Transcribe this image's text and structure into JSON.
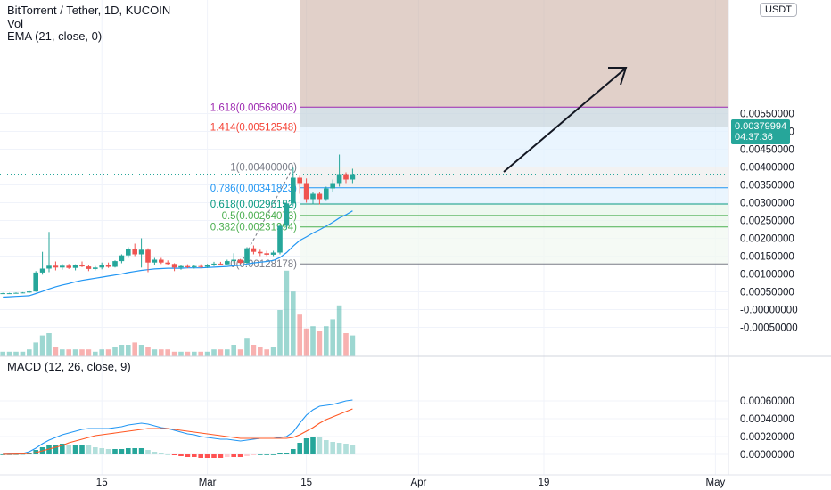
{
  "header": {
    "symbol": "BitTorrent / Tether, 1D, KUCOIN",
    "vol_label": "Vol",
    "ema_label": "EMA (21, close, 0)",
    "macd_label": "MACD (12, 26, close, 9)",
    "currency_button": "USDT"
  },
  "colors": {
    "up": "#26a69a",
    "down": "#ef5350",
    "ema": "#2196f3",
    "macd": "#2196f3",
    "signal": "#ff5722",
    "grid": "#f0f3fa"
  },
  "last_price": {
    "value": "0.00379994",
    "countdown": "04:37:36"
  },
  "price_axis_ticks": [
    "0.00550000",
    "0.00500000",
    "0.00450000",
    "0.00400000",
    "0.00350000",
    "0.00300000",
    "0.00250000",
    "0.00200000",
    "0.00150000",
    "0.00100000",
    "0.00050000",
    "-0.00000000",
    "-0.00050000"
  ],
  "macd_axis_ticks": [
    "0.00060000",
    "0.00040000",
    "0.00020000",
    "0.00000000"
  ],
  "time_axis_ticks": [
    "15",
    "Mar",
    "15",
    "Apr",
    "19",
    "May"
  ],
  "fib_levels": [
    {
      "label": "1.618(0.00568006)",
      "price": 0.00568006,
      "color": "#9c27b0"
    },
    {
      "label": "1.414(0.00512548)",
      "price": 0.00512548,
      "color": "#f44336"
    },
    {
      "label": "1(0.00400000)",
      "price": 0.004,
      "color": "#787b86"
    },
    {
      "label": "0.786(0.00341823)",
      "price": 0.00341823,
      "color": "#2196f3"
    },
    {
      "label": "0.618(0.00296152)",
      "price": 0.00296152,
      "color": "#089981"
    },
    {
      "label": "0.5(0.00264073)",
      "price": 0.00264073,
      "color": "#4caf50"
    },
    {
      "label": "0.382(0.00231994)",
      "price": 0.00231994,
      "color": "#4caf50"
    },
    {
      "label": "0(0.00128178)",
      "price": 0.00128178,
      "color": "#787b86"
    }
  ],
  "chart_data": [
    {
      "type": "candlestick",
      "title": "BitTorrent / Tether, 1D, KUCOIN",
      "ylim": [
        -0.0005,
        0.006
      ],
      "grid": true,
      "series": [
        {
          "name": "price",
          "ohlc": [
            [
              0.00045,
              0.00047,
              0.00044,
              0.00046
            ],
            [
              0.00046,
              0.00047,
              0.00045,
              0.00046
            ],
            [
              0.00046,
              0.00048,
              0.00045,
              0.00047
            ],
            [
              0.00047,
              0.00049,
              0.00046,
              0.00048
            ],
            [
              0.00048,
              0.00052,
              0.00047,
              0.00051
            ],
            [
              0.00051,
              0.00108,
              0.0005,
              0.00104
            ],
            [
              0.00104,
              0.00162,
              0.00098,
              0.00115
            ],
            [
              0.00115,
              0.00218,
              0.00105,
              0.00123
            ],
            [
              0.00123,
              0.00135,
              0.0011,
              0.00118
            ],
            [
              0.00118,
              0.00128,
              0.00112,
              0.00123
            ],
            [
              0.00123,
              0.00128,
              0.00114,
              0.00117
            ],
            [
              0.00117,
              0.00127,
              0.0011,
              0.00124
            ],
            [
              0.00124,
              0.00135,
              0.00119,
              0.00121
            ],
            [
              0.00121,
              0.00126,
              0.00108,
              0.00114
            ],
            [
              0.00114,
              0.00122,
              0.0011,
              0.00118
            ],
            [
              0.00118,
              0.00132,
              0.00113,
              0.00125
            ],
            [
              0.00125,
              0.00132,
              0.00117,
              0.0012
            ],
            [
              0.0012,
              0.00138,
              0.00118,
              0.00136
            ],
            [
              0.00136,
              0.00155,
              0.0013,
              0.00152
            ],
            [
              0.00152,
              0.00175,
              0.00145,
              0.0017
            ],
            [
              0.0017,
              0.00185,
              0.0015,
              0.00155
            ],
            [
              0.00155,
              0.002,
              0.00118,
              0.00168
            ],
            [
              0.00168,
              0.00172,
              0.00105,
              0.00132
            ],
            [
              0.00132,
              0.00145,
              0.00125,
              0.0014
            ],
            [
              0.0014,
              0.00145,
              0.00128,
              0.00132
            ],
            [
              0.00132,
              0.00138,
              0.00124,
              0.00128
            ],
            [
              0.00128,
              0.0013,
              0.00108,
              0.00118
            ],
            [
              0.00118,
              0.00126,
              0.00112,
              0.00122
            ],
            [
              0.00122,
              0.00127,
              0.00116,
              0.00119
            ],
            [
              0.00119,
              0.00126,
              0.00115,
              0.00122
            ],
            [
              0.00122,
              0.00127,
              0.00117,
              0.0012
            ],
            [
              0.0012,
              0.00128,
              0.00117,
              0.00125
            ],
            [
              0.00125,
              0.00134,
              0.00122,
              0.00129
            ],
            [
              0.00129,
              0.00134,
              0.00124,
              0.00127
            ],
            [
              0.00127,
              0.0014,
              0.00124,
              0.00136
            ],
            [
              0.00136,
              0.00158,
              0.0013,
              0.0014
            ],
            [
              0.0014,
              0.00142,
              0.00128,
              0.00131
            ],
            [
              0.00131,
              0.00175,
              0.00128,
              0.00172
            ],
            [
              0.00172,
              0.0018,
              0.00155,
              0.00162
            ],
            [
              0.00162,
              0.00168,
              0.0015,
              0.00158
            ],
            [
              0.00158,
              0.00165,
              0.0015,
              0.00154
            ],
            [
              0.00154,
              0.00165,
              0.0015,
              0.0016
            ],
            [
              0.0016,
              0.0024,
              0.00155,
              0.00235
            ],
            [
              0.00235,
              0.00305,
              0.00225,
              0.00298
            ],
            [
              0.00298,
              0.00398,
              0.0029,
              0.0037
            ],
            [
              0.0037,
              0.00378,
              0.00325,
              0.00355
            ],
            [
              0.00355,
              0.00368,
              0.003,
              0.0031
            ],
            [
              0.0031,
              0.0033,
              0.00295,
              0.00325
            ],
            [
              0.00325,
              0.0033,
              0.00295,
              0.0031
            ],
            [
              0.0031,
              0.00345,
              0.00305,
              0.0034
            ],
            [
              0.0034,
              0.00365,
              0.0033,
              0.00355
            ],
            [
              0.00355,
              0.00435,
              0.00345,
              0.0038
            ],
            [
              0.0038,
              0.00385,
              0.00355,
              0.00365
            ],
            [
              0.00365,
              0.00395,
              0.00355,
              0.0038
            ]
          ]
        },
        {
          "name": "EMA (21, close, 0)",
          "values": [
            0.00035,
            0.00036,
            0.00037,
            0.00038,
            0.00039,
            0.00045,
            0.00051,
            0.00058,
            0.00064,
            0.00069,
            0.00073,
            0.00078,
            0.00082,
            0.00085,
            0.00088,
            0.00091,
            0.00094,
            0.00097,
            0.001,
            0.00104,
            0.00107,
            0.0011,
            0.00112,
            0.00114,
            0.00115,
            0.00116,
            0.00116,
            0.00116,
            0.00117,
            0.00117,
            0.00117,
            0.00118,
            0.00119,
            0.0012,
            0.00121,
            0.00123,
            0.00124,
            0.00128,
            0.00131,
            0.00133,
            0.00135,
            0.00138,
            0.00146,
            0.0016,
            0.00178,
            0.00194,
            0.00204,
            0.00215,
            0.00224,
            0.00234,
            0.00245,
            0.00257,
            0.00266,
            0.00277
          ]
        }
      ]
    },
    {
      "type": "bar",
      "title": "Vol",
      "values": [
        2,
        2,
        2,
        2,
        3,
        6,
        9,
        10,
        4,
        3,
        3,
        3,
        3,
        3,
        2,
        3,
        3,
        4,
        5,
        5,
        6,
        5,
        4,
        3,
        3,
        3,
        2,
        2,
        2,
        2,
        2,
        2,
        3,
        3,
        3,
        5,
        3,
        8,
        5,
        4,
        3,
        4,
        20,
        37,
        28,
        18,
        12,
        13,
        11,
        13,
        16,
        22,
        10,
        9
      ]
    },
    {
      "type": "line",
      "title": "MACD (12, 26, close, 9)",
      "ylim": [
        -8e-05,
        0.00068
      ],
      "series": [
        {
          "name": "MACD",
          "values": [
            1e-06,
            3e-06,
            5e-06,
            1e-05,
            3e-05,
            7e-05,
            0.00012,
            0.00016,
            0.00019,
            0.00022,
            0.00024,
            0.00026,
            0.00028,
            0.00029,
            0.00029,
            0.00029,
            0.00029,
            0.0003,
            0.00031,
            0.00033,
            0.00034,
            0.00035,
            0.00034,
            0.00032,
            0.0003,
            0.00029,
            0.00027,
            0.00025,
            0.00023,
            0.00022,
            0.0002,
            0.00019,
            0.00018,
            0.00017,
            0.00017,
            0.00016,
            0.00015,
            0.00016,
            0.00017,
            0.00018,
            0.00018,
            0.00018,
            0.00019,
            0.0002,
            0.00025,
            0.00035,
            0.00044,
            0.0005,
            0.00054,
            0.00055,
            0.00056,
            0.00058,
            0.0006,
            0.00061
          ]
        },
        {
          "name": "Signal",
          "values": [
            1e-06,
            2e-06,
            3e-06,
            5e-06,
            1e-05,
            2e-05,
            4e-05,
            6e-05,
            8e-05,
            0.0001,
            0.00013,
            0.00015,
            0.00017,
            0.00019,
            0.00021,
            0.00022,
            0.00023,
            0.00024,
            0.00025,
            0.00026,
            0.00027,
            0.00028,
            0.00029,
            0.00029,
            0.00029,
            0.00029,
            0.00028,
            0.00027,
            0.00026,
            0.00025,
            0.00024,
            0.00023,
            0.00022,
            0.00021,
            0.0002,
            0.00019,
            0.00018,
            0.00018,
            0.00018,
            0.00018,
            0.00018,
            0.00018,
            0.00018,
            0.00018,
            0.00019,
            0.00022,
            0.00026,
            0.0003,
            0.00035,
            0.00039,
            0.00042,
            0.00045,
            0.00048,
            0.00051
          ]
        },
        {
          "name": "Histogram",
          "values": [
            0,
            1e-06,
            2e-06,
            5e-06,
            2e-05,
            5e-05,
            8e-05,
            0.0001,
            0.00011,
            0.00012,
            0.00011,
            0.00011,
            0.00011,
            0.0001,
            8e-05,
            7e-05,
            6e-05,
            6e-05,
            6e-05,
            7e-05,
            7e-05,
            7e-05,
            5e-05,
            3e-05,
            1e-05,
            0,
            -1e-05,
            -2e-05,
            -3e-05,
            -3e-05,
            -4e-05,
            -4e-05,
            -4e-05,
            -4e-05,
            -3e-05,
            -3e-05,
            -3e-05,
            -2e-05,
            -1e-05,
            0,
            0,
            0,
            1e-05,
            2e-05,
            6e-05,
            0.00013,
            0.00018,
            0.0002,
            0.00019,
            0.00016,
            0.00014,
            0.00013,
            0.00012,
            0.0001
          ]
        }
      ]
    }
  ]
}
